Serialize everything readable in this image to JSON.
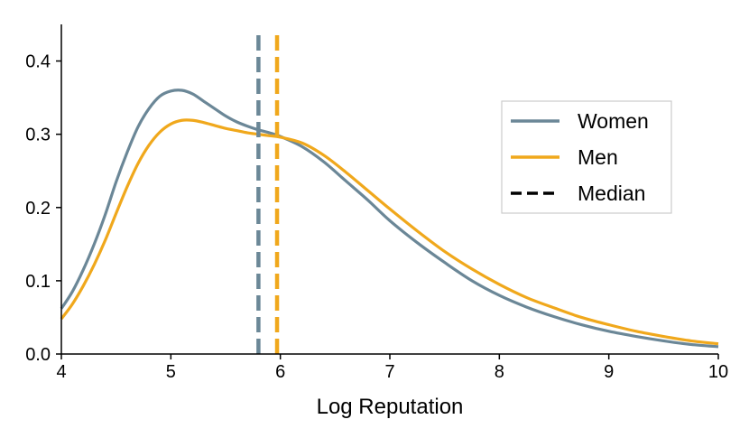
{
  "chart_data": {
    "type": "line",
    "title": "",
    "xlabel": "Log Reputation",
    "ylabel": "",
    "xlim": [
      4,
      10
    ],
    "ylim": [
      0,
      0.45
    ],
    "xticks": [
      4,
      5,
      6,
      7,
      8,
      9,
      10
    ],
    "xtick_labels": [
      "4",
      "5",
      "6",
      "7",
      "8",
      "9",
      "10"
    ],
    "yticks": [
      0.0,
      0.1,
      0.2,
      0.3,
      0.4
    ],
    "ytick_labels": [
      "0.0",
      "0.1",
      "0.2",
      "0.3",
      "0.4"
    ],
    "grid": false,
    "legend": {
      "position": "right",
      "entries": [
        {
          "label": "Women",
          "style": "solid",
          "color": "#6b8797"
        },
        {
          "label": "Men",
          "style": "solid",
          "color": "#f0a81c"
        },
        {
          "label": "Median",
          "style": "dashed",
          "color": "#000000"
        }
      ]
    },
    "series": [
      {
        "name": "Women",
        "color": "#6b8797",
        "x": [
          4.0,
          4.1,
          4.2,
          4.3,
          4.4,
          4.5,
          4.6,
          4.7,
          4.8,
          4.9,
          5.0,
          5.1,
          5.2,
          5.3,
          5.4,
          5.5,
          5.6,
          5.7,
          5.8,
          5.9,
          6.0,
          6.2,
          6.4,
          6.6,
          6.8,
          7.0,
          7.25,
          7.5,
          7.75,
          8.0,
          8.25,
          8.5,
          8.75,
          9.0,
          9.25,
          9.5,
          9.75,
          10.0
        ],
        "y": [
          0.062,
          0.085,
          0.115,
          0.15,
          0.19,
          0.235,
          0.275,
          0.31,
          0.335,
          0.352,
          0.359,
          0.36,
          0.355,
          0.345,
          0.335,
          0.325,
          0.317,
          0.311,
          0.306,
          0.302,
          0.297,
          0.283,
          0.262,
          0.236,
          0.21,
          0.182,
          0.152,
          0.125,
          0.1,
          0.08,
          0.064,
          0.051,
          0.04,
          0.031,
          0.024,
          0.018,
          0.013,
          0.01
        ]
      },
      {
        "name": "Men",
        "color": "#f0a81c",
        "x": [
          4.0,
          4.1,
          4.2,
          4.3,
          4.4,
          4.5,
          4.6,
          4.7,
          4.8,
          4.9,
          5.0,
          5.1,
          5.2,
          5.3,
          5.4,
          5.5,
          5.6,
          5.7,
          5.8,
          5.9,
          6.0,
          6.2,
          6.4,
          6.6,
          6.8,
          7.0,
          7.25,
          7.5,
          7.75,
          8.0,
          8.25,
          8.5,
          8.75,
          9.0,
          9.25,
          9.5,
          9.75,
          10.0
        ],
        "y": [
          0.048,
          0.068,
          0.093,
          0.122,
          0.155,
          0.192,
          0.228,
          0.26,
          0.285,
          0.303,
          0.314,
          0.319,
          0.319,
          0.316,
          0.312,
          0.308,
          0.305,
          0.302,
          0.3,
          0.298,
          0.296,
          0.288,
          0.271,
          0.248,
          0.223,
          0.198,
          0.168,
          0.14,
          0.116,
          0.095,
          0.077,
          0.063,
          0.05,
          0.04,
          0.031,
          0.024,
          0.018,
          0.014
        ]
      }
    ],
    "medians": [
      {
        "series": "Women",
        "x": 5.8,
        "color": "#6b8797"
      },
      {
        "series": "Men",
        "x": 5.97,
        "color": "#f0a81c"
      }
    ]
  }
}
